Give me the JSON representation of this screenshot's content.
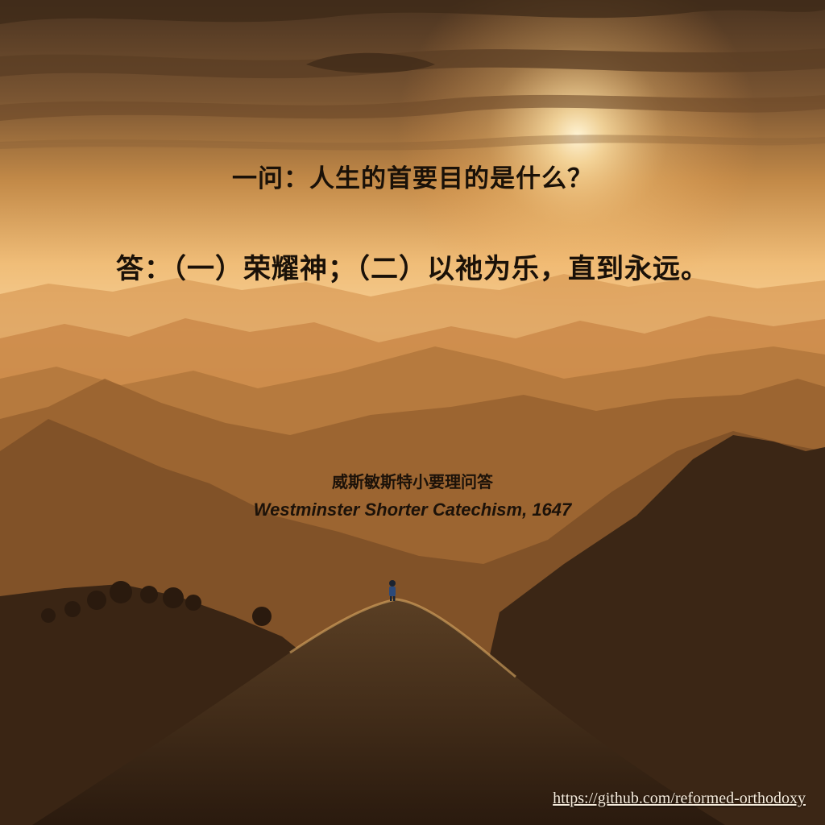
{
  "quote": {
    "question": "一问：人生的首要目的是什么？",
    "answer": "答：（一）荣耀神；（二）以祂为乐，直到永远。"
  },
  "source": {
    "chinese": "威斯敏斯特小要理问答",
    "english": "Westminster Shorter Catechism, 1647"
  },
  "footer": {
    "link": "https://github.com/reformed-orthodoxy"
  },
  "colors": {
    "sky_top": "#4a3320",
    "sky_glow": "#f5c27a",
    "sun": "#fff4d6",
    "text": "#1a1108",
    "link": "#f7ecdc"
  }
}
